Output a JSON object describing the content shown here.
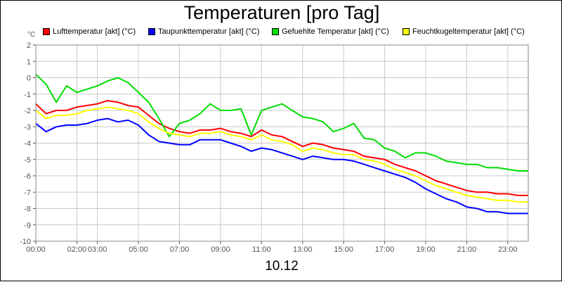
{
  "chart_data": {
    "type": "line",
    "title": "Temperaturen [pro Tag]",
    "unit_label": "°C",
    "xlabel": "10.12",
    "ylabel": "°C",
    "ylim": [
      -10,
      2
    ],
    "xlim_hours": [
      0,
      24
    ],
    "y_ticks": [
      2,
      1,
      0,
      -1,
      -2,
      -3,
      -4,
      -5,
      -6,
      -7,
      -8,
      -9,
      -10
    ],
    "x_ticks": [
      {
        "hour": 0,
        "label": "00:00"
      },
      {
        "hour": 2,
        "label": "02:00"
      },
      {
        "hour": 3,
        "label": "03:00"
      },
      {
        "hour": 5,
        "label": "05:00"
      },
      {
        "hour": 7,
        "label": "07:00"
      },
      {
        "hour": 9,
        "label": "09:00"
      },
      {
        "hour": 11,
        "label": "11:00"
      },
      {
        "hour": 13,
        "label": "13:00"
      },
      {
        "hour": 15,
        "label": "15:00"
      },
      {
        "hour": 17,
        "label": "17:00"
      },
      {
        "hour": 19,
        "label": "19:00"
      },
      {
        "hour": 21,
        "label": "21:00"
      },
      {
        "hour": 23,
        "label": "23:00"
      }
    ],
    "grid": true,
    "series": [
      {
        "name": "Lufttemperatur [akt] (°C)",
        "color": "#ff0000",
        "x": [
          0,
          0.5,
          1,
          1.5,
          2,
          2.5,
          3,
          3.5,
          4,
          4.5,
          5,
          5.5,
          6,
          6.5,
          7,
          7.5,
          8,
          8.5,
          9,
          9.5,
          10,
          10.5,
          11,
          11.5,
          12,
          12.5,
          13,
          13.5,
          14,
          14.5,
          15,
          15.5,
          16,
          16.5,
          17,
          17.5,
          18,
          18.5,
          19,
          19.5,
          20,
          20.5,
          21,
          21.5,
          22,
          22.5,
          23,
          23.5,
          24
        ],
        "values": [
          -1.6,
          -2.2,
          -2.0,
          -2.0,
          -1.8,
          -1.7,
          -1.6,
          -1.4,
          -1.5,
          -1.7,
          -1.8,
          -2.3,
          -2.8,
          -3.1,
          -3.3,
          -3.4,
          -3.2,
          -3.2,
          -3.1,
          -3.3,
          -3.4,
          -3.6,
          -3.2,
          -3.5,
          -3.6,
          -3.9,
          -4.2,
          -4.0,
          -4.1,
          -4.3,
          -4.4,
          -4.5,
          -4.8,
          -4.9,
          -5.0,
          -5.3,
          -5.5,
          -5.7,
          -6.0,
          -6.3,
          -6.5,
          -6.7,
          -6.9,
          -7.0,
          -7.0,
          -7.1,
          -7.1,
          -7.2,
          -7.2
        ]
      },
      {
        "name": "Taupunkttemperatur [akt] (°C)",
        "color": "#0000ff",
        "x": [
          0,
          0.5,
          1,
          1.5,
          2,
          2.5,
          3,
          3.5,
          4,
          4.5,
          5,
          5.5,
          6,
          6.5,
          7,
          7.5,
          8,
          8.5,
          9,
          9.5,
          10,
          10.5,
          11,
          11.5,
          12,
          12.5,
          13,
          13.5,
          14,
          14.5,
          15,
          15.5,
          16,
          16.5,
          17,
          17.5,
          18,
          18.5,
          19,
          19.5,
          20,
          20.5,
          21,
          21.5,
          22,
          22.5,
          23,
          23.5,
          24
        ],
        "values": [
          -2.8,
          -3.3,
          -3.0,
          -2.9,
          -2.9,
          -2.8,
          -2.6,
          -2.5,
          -2.7,
          -2.6,
          -2.9,
          -3.5,
          -3.9,
          -4.0,
          -4.1,
          -4.1,
          -3.8,
          -3.8,
          -3.8,
          -4.0,
          -4.2,
          -4.5,
          -4.3,
          -4.4,
          -4.6,
          -4.8,
          -5.0,
          -4.8,
          -4.9,
          -5.0,
          -5.0,
          -5.1,
          -5.3,
          -5.5,
          -5.7,
          -5.9,
          -6.1,
          -6.4,
          -6.8,
          -7.1,
          -7.4,
          -7.6,
          -7.9,
          -8.0,
          -8.2,
          -8.2,
          -8.3,
          -8.3,
          -8.3
        ]
      },
      {
        "name": "Gefuehlte Temperatur [akt] (°C)",
        "color": "#00dd00",
        "x": [
          0,
          0.5,
          1,
          1.5,
          2,
          2.5,
          3,
          3.5,
          4,
          4.5,
          5,
          5.5,
          6,
          6.5,
          7,
          7.5,
          8,
          8.5,
          9,
          9.5,
          10,
          10.5,
          11,
          11.5,
          12,
          12.5,
          13,
          13.5,
          14,
          14.5,
          15,
          15.5,
          16,
          16.5,
          17,
          17.5,
          18,
          18.5,
          19,
          19.5,
          20,
          20.5,
          21,
          21.5,
          22,
          22.5,
          23,
          23.5,
          24
        ],
        "values": [
          0.2,
          -0.4,
          -1.5,
          -0.5,
          -0.9,
          -0.7,
          -0.5,
          -0.2,
          0.0,
          -0.3,
          -0.9,
          -1.5,
          -2.5,
          -3.6,
          -2.8,
          -2.6,
          -2.2,
          -1.6,
          -2.0,
          -2.0,
          -1.9,
          -3.5,
          -2.0,
          -1.8,
          -1.6,
          -2.0,
          -2.4,
          -2.5,
          -2.7,
          -3.3,
          -3.1,
          -2.8,
          -3.7,
          -3.8,
          -4.3,
          -4.5,
          -4.9,
          -4.6,
          -4.6,
          -4.8,
          -5.1,
          -5.2,
          -5.3,
          -5.3,
          -5.5,
          -5.5,
          -5.6,
          -5.7,
          -5.7
        ]
      },
      {
        "name": "Feuchtkugeltemperatur [akt] (°C)",
        "color": "#ffff00",
        "x": [
          0,
          0.5,
          1,
          1.5,
          2,
          2.5,
          3,
          3.5,
          4,
          4.5,
          5,
          5.5,
          6,
          6.5,
          7,
          7.5,
          8,
          8.5,
          9,
          9.5,
          10,
          10.5,
          11,
          11.5,
          12,
          12.5,
          13,
          13.5,
          14,
          14.5,
          15,
          15.5,
          16,
          16.5,
          17,
          17.5,
          18,
          18.5,
          19,
          19.5,
          20,
          20.5,
          21,
          21.5,
          22,
          22.5,
          23,
          23.5,
          24
        ],
        "values": [
          -2.0,
          -2.5,
          -2.3,
          -2.3,
          -2.2,
          -2.0,
          -1.9,
          -1.8,
          -1.9,
          -2.0,
          -2.2,
          -2.7,
          -3.1,
          -3.4,
          -3.5,
          -3.6,
          -3.4,
          -3.4,
          -3.3,
          -3.5,
          -3.6,
          -3.8,
          -3.5,
          -3.8,
          -3.9,
          -4.1,
          -4.5,
          -4.3,
          -4.4,
          -4.6,
          -4.7,
          -4.7,
          -5.0,
          -5.1,
          -5.3,
          -5.6,
          -5.8,
          -6.0,
          -6.3,
          -6.6,
          -6.8,
          -7.0,
          -7.2,
          -7.3,
          -7.4,
          -7.5,
          -7.5,
          -7.6,
          -7.6
        ]
      }
    ]
  }
}
